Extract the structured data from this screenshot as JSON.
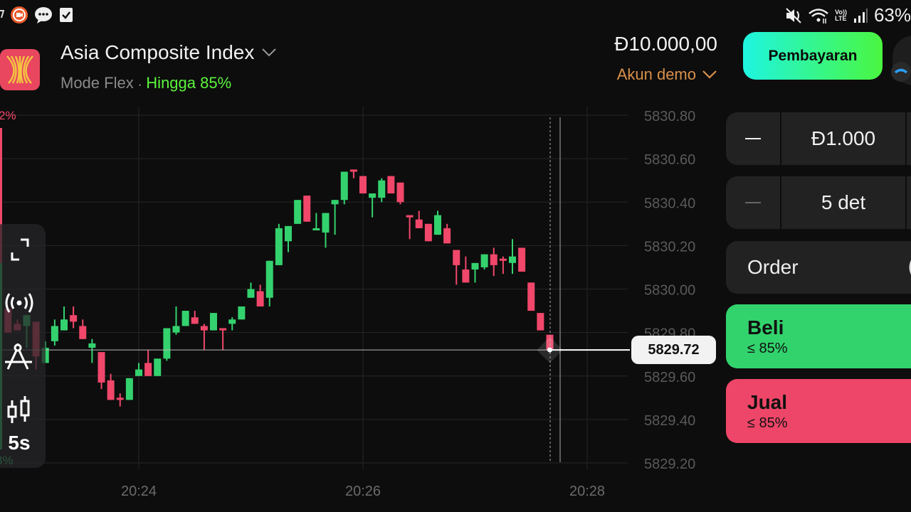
{
  "status_bar": {
    "battery": "63%",
    "volte": "Vo))\nLTE"
  },
  "header": {
    "asset_name": "Asia Composite Index",
    "mode": "Mode Flex",
    "separator": "·",
    "payout": "Hingga 85%",
    "balance": "Đ10.000,00",
    "account": "Akun demo",
    "payment_button": "Pembayaran"
  },
  "sidebar_edge": {
    "top_pct": "2%",
    "bottom_pct": "3%"
  },
  "toolbar": {
    "timeframe": "5s",
    "icons": [
      "fullscreen-icon",
      "live-broadcast-icon",
      "drawing-compass-icon",
      "candlestick-icon"
    ]
  },
  "trade_panel": {
    "amount": "Đ1.000",
    "duration": "5 det",
    "order_label": "Order",
    "buy_label": "Beli",
    "buy_payout": "≤ 85%",
    "sell_label": "Jual",
    "sell_payout": "≤ 85%"
  },
  "colors": {
    "up": "#34d26e",
    "down": "#f0476a",
    "accent_orange": "#d9904a",
    "payout_green": "#5cf53d",
    "background": "#0d0d0d"
  },
  "chart_data": {
    "type": "candlestick",
    "interval": "5s",
    "current_price": "5829.72",
    "ylim": [
      5829.2,
      5830.8
    ],
    "y_ticks": [
      "5830.80",
      "5830.60",
      "5830.40",
      "5830.20",
      "5830.00",
      "5829.80",
      "5829.60",
      "5829.40",
      "5829.20"
    ],
    "x_ticks": [
      "20:24",
      "20:26",
      "20:28"
    ],
    "grid": true,
    "candles": [
      {
        "t": "20:22:50",
        "o": 5829.91,
        "h": 5829.91,
        "l": 5829.8,
        "c": 5829.8
      },
      {
        "t": "20:22:55",
        "o": 5829.84,
        "h": 5829.86,
        "l": 5829.81,
        "c": 5829.81
      },
      {
        "t": "20:23:00",
        "o": 5829.83,
        "h": 5829.88,
        "l": 5829.73,
        "c": 5829.88
      },
      {
        "t": "20:23:05",
        "o": 5829.85,
        "h": 5829.85,
        "l": 5829.63,
        "c": 5829.69
      },
      {
        "t": "20:23:10",
        "o": 5829.66,
        "h": 5829.76,
        "l": 5829.66,
        "c": 5829.73
      },
      {
        "t": "20:23:15",
        "o": 5829.76,
        "h": 5829.86,
        "l": 5829.74,
        "c": 5829.83
      },
      {
        "t": "20:23:20",
        "o": 5829.81,
        "h": 5829.92,
        "l": 5829.81,
        "c": 5829.86
      },
      {
        "t": "20:23:25",
        "o": 5829.88,
        "h": 5829.92,
        "l": 5829.82,
        "c": 5829.85
      },
      {
        "t": "20:23:30",
        "o": 5829.83,
        "h": 5829.86,
        "l": 5829.77,
        "c": 5829.77
      },
      {
        "t": "20:23:35",
        "o": 5829.73,
        "h": 5829.77,
        "l": 5829.66,
        "c": 5829.75
      },
      {
        "t": "20:23:40",
        "o": 5829.71,
        "h": 5829.71,
        "l": 5829.54,
        "c": 5829.57
      },
      {
        "t": "20:23:45",
        "o": 5829.58,
        "h": 5829.61,
        "l": 5829.49,
        "c": 5829.49
      },
      {
        "t": "20:23:50",
        "o": 5829.5,
        "h": 5829.52,
        "l": 5829.46,
        "c": 5829.49
      },
      {
        "t": "20:23:55",
        "o": 5829.49,
        "h": 5829.59,
        "l": 5829.49,
        "c": 5829.59
      },
      {
        "t": "20:24:00",
        "o": 5829.6,
        "h": 5829.66,
        "l": 5829.6,
        "c": 5829.63
      },
      {
        "t": "20:24:05",
        "o": 5829.66,
        "h": 5829.72,
        "l": 5829.6,
        "c": 5829.6
      },
      {
        "t": "20:24:10",
        "o": 5829.6,
        "h": 5829.68,
        "l": 5829.6,
        "c": 5829.68
      },
      {
        "t": "20:24:15",
        "o": 5829.68,
        "h": 5829.82,
        "l": 5829.67,
        "c": 5829.82
      },
      {
        "t": "20:24:20",
        "o": 5829.8,
        "h": 5829.92,
        "l": 5829.79,
        "c": 5829.83
      },
      {
        "t": "20:24:25",
        "o": 5829.83,
        "h": 5829.9,
        "l": 5829.83,
        "c": 5829.9
      },
      {
        "t": "20:24:30",
        "o": 5829.87,
        "h": 5829.9,
        "l": 5829.84,
        "c": 5829.84
      },
      {
        "t": "20:24:35",
        "o": 5829.83,
        "h": 5829.84,
        "l": 5829.72,
        "c": 5829.81
      },
      {
        "t": "20:24:40",
        "o": 5829.81,
        "h": 5829.89,
        "l": 5829.81,
        "c": 5829.89
      },
      {
        "t": "20:24:45",
        "o": 5829.82,
        "h": 5829.82,
        "l": 5829.72,
        "c": 5829.81
      },
      {
        "t": "20:24:50",
        "o": 5829.84,
        "h": 5829.87,
        "l": 5829.81,
        "c": 5829.86
      },
      {
        "t": "20:24:55",
        "o": 5829.86,
        "h": 5829.92,
        "l": 5829.86,
        "c": 5829.92
      },
      {
        "t": "20:25:00",
        "o": 5829.96,
        "h": 5830.03,
        "l": 5829.96,
        "c": 5830.0
      },
      {
        "t": "20:25:05",
        "o": 5829.99,
        "h": 5830.02,
        "l": 5829.92,
        "c": 5829.92
      },
      {
        "t": "20:25:10",
        "o": 5829.96,
        "h": 5830.13,
        "l": 5829.92,
        "c": 5830.13
      },
      {
        "t": "20:25:15",
        "o": 5830.11,
        "h": 5830.3,
        "l": 5830.11,
        "c": 5830.28
      },
      {
        "t": "20:25:20",
        "o": 5830.22,
        "h": 5830.29,
        "l": 5830.17,
        "c": 5830.29
      },
      {
        "t": "20:25:25",
        "o": 5830.3,
        "h": 5830.41,
        "l": 5830.3,
        "c": 5830.41
      },
      {
        "t": "20:25:30",
        "o": 5830.43,
        "h": 5830.43,
        "l": 5830.31,
        "c": 5830.31
      },
      {
        "t": "20:25:35",
        "o": 5830.27,
        "h": 5830.35,
        "l": 5830.27,
        "c": 5830.28
      },
      {
        "t": "20:25:40",
        "o": 5830.26,
        "h": 5830.35,
        "l": 5830.19,
        "c": 5830.35
      },
      {
        "t": "20:25:45",
        "o": 5830.39,
        "h": 5830.41,
        "l": 5830.25,
        "c": 5830.41
      },
      {
        "t": "20:25:50",
        "o": 5830.41,
        "h": 5830.54,
        "l": 5830.39,
        "c": 5830.54
      },
      {
        "t": "20:25:55",
        "o": 5830.55,
        "h": 5830.55,
        "l": 5830.51,
        "c": 5830.54
      },
      {
        "t": "20:26:00",
        "o": 5830.52,
        "h": 5830.52,
        "l": 5830.44,
        "c": 5830.44
      },
      {
        "t": "20:26:05",
        "o": 5830.42,
        "h": 5830.44,
        "l": 5830.33,
        "c": 5830.44
      },
      {
        "t": "20:26:10",
        "o": 5830.42,
        "h": 5830.51,
        "l": 5830.4,
        "c": 5830.5
      },
      {
        "t": "20:26:15",
        "o": 5830.52,
        "h": 5830.52,
        "l": 5830.44,
        "c": 5830.44
      },
      {
        "t": "20:26:20",
        "o": 5830.49,
        "h": 5830.49,
        "l": 5830.39,
        "c": 5830.4
      },
      {
        "t": "20:26:25",
        "o": 5830.34,
        "h": 5830.34,
        "l": 5830.23,
        "c": 5830.33
      },
      {
        "t": "20:26:30",
        "o": 5830.32,
        "h": 5830.36,
        "l": 5830.28,
        "c": 5830.28
      },
      {
        "t": "20:26:35",
        "o": 5830.3,
        "h": 5830.3,
        "l": 5830.22,
        "c": 5830.22
      },
      {
        "t": "20:26:40",
        "o": 5830.25,
        "h": 5830.36,
        "l": 5830.25,
        "c": 5830.34
      },
      {
        "t": "20:26:45",
        "o": 5830.28,
        "h": 5830.3,
        "l": 5830.21,
        "c": 5830.21
      },
      {
        "t": "20:26:50",
        "o": 5830.18,
        "h": 5830.18,
        "l": 5830.02,
        "c": 5830.11
      },
      {
        "t": "20:26:55",
        "o": 5830.09,
        "h": 5830.15,
        "l": 5830.03,
        "c": 5830.03
      },
      {
        "t": "20:27:00",
        "o": 5830.09,
        "h": 5830.12,
        "l": 5830.03,
        "c": 5830.12
      },
      {
        "t": "20:27:05",
        "o": 5830.1,
        "h": 5830.16,
        "l": 5830.09,
        "c": 5830.16
      },
      {
        "t": "20:27:10",
        "o": 5830.16,
        "h": 5830.19,
        "l": 5830.06,
        "c": 5830.11
      },
      {
        "t": "20:27:15",
        "o": 5830.14,
        "h": 5830.15,
        "l": 5830.07,
        "c": 5830.13
      },
      {
        "t": "20:27:20",
        "o": 5830.12,
        "h": 5830.23,
        "l": 5830.07,
        "c": 5830.15
      },
      {
        "t": "20:27:25",
        "o": 5830.19,
        "h": 5830.19,
        "l": 5830.08,
        "c": 5830.08
      },
      {
        "t": "20:27:30",
        "o": 5830.03,
        "h": 5830.03,
        "l": 5829.9,
        "c": 5829.9
      },
      {
        "t": "20:27:35",
        "o": 5829.89,
        "h": 5829.89,
        "l": 5829.81,
        "c": 5829.81
      },
      {
        "t": "20:27:40",
        "o": 5829.79,
        "h": 5829.79,
        "l": 5829.72,
        "c": 5829.72
      }
    ]
  }
}
